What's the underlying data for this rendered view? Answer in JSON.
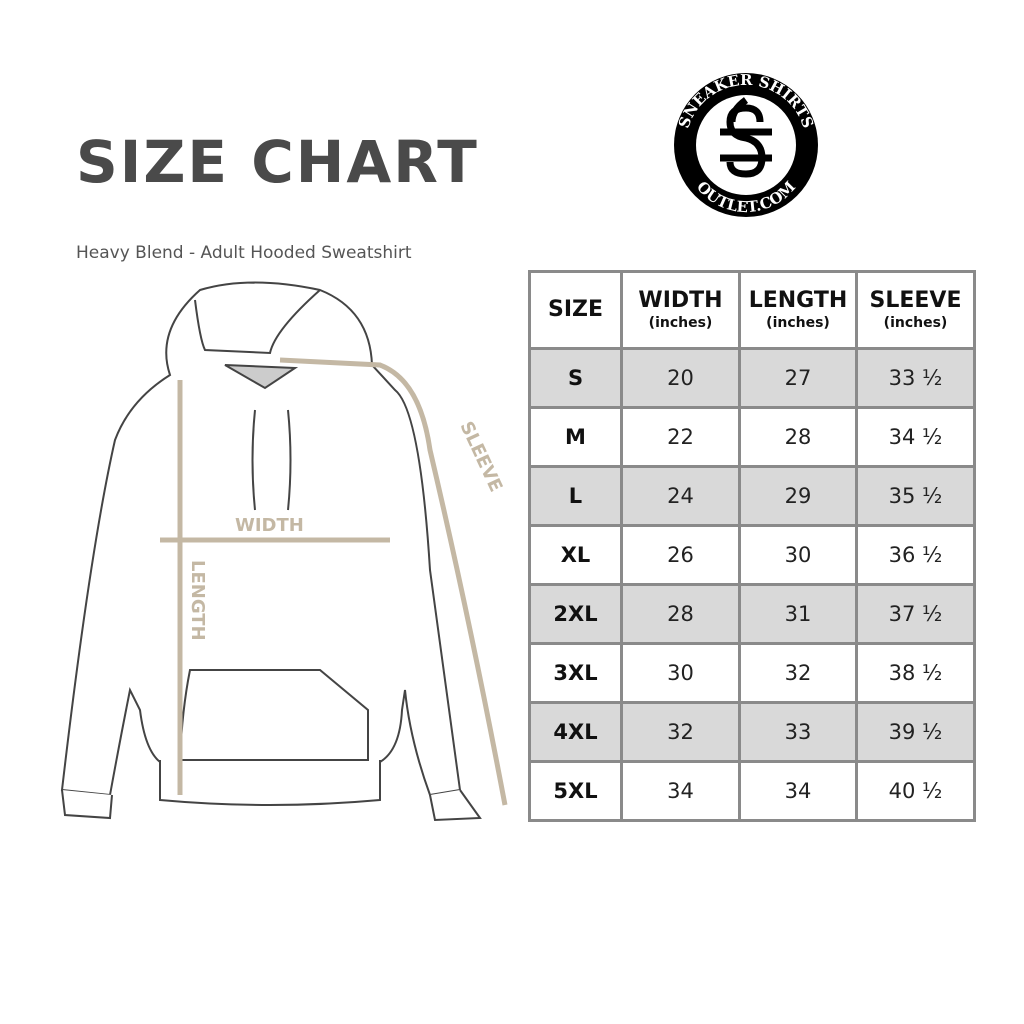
{
  "title": "SIZE CHART",
  "subtitle": "Heavy Blend - Adult Hooded Sweatshirt",
  "logo": {
    "top_text": "SNEAKER SHIRTS",
    "bottom_text": "OUTLET.COM"
  },
  "diagram": {
    "width_label": "WIDTH",
    "length_label": "LENGTH",
    "sleeve_label": "SLEEVE",
    "arrow_color": "#c4b8a4"
  },
  "table": {
    "headers": [
      {
        "label": "SIZE",
        "unit": ""
      },
      {
        "label": "WIDTH",
        "unit": "(inches)"
      },
      {
        "label": "LENGTH",
        "unit": "(inches)"
      },
      {
        "label": "SLEEVE",
        "unit": "(inches)"
      }
    ],
    "rows": [
      [
        "S",
        "20",
        "27",
        "33 ½"
      ],
      [
        "M",
        "22",
        "28",
        "34 ½"
      ],
      [
        "L",
        "24",
        "29",
        "35 ½"
      ],
      [
        "XL",
        "26",
        "30",
        "36 ½"
      ],
      [
        "2XL",
        "28",
        "31",
        "37 ½"
      ],
      [
        "3XL",
        "30",
        "32",
        "38 ½"
      ],
      [
        "4XL",
        "32",
        "33",
        "39 ½"
      ],
      [
        "5XL",
        "34",
        "34",
        "40 ½"
      ]
    ],
    "alt_row_color": "#d9d9d9"
  }
}
